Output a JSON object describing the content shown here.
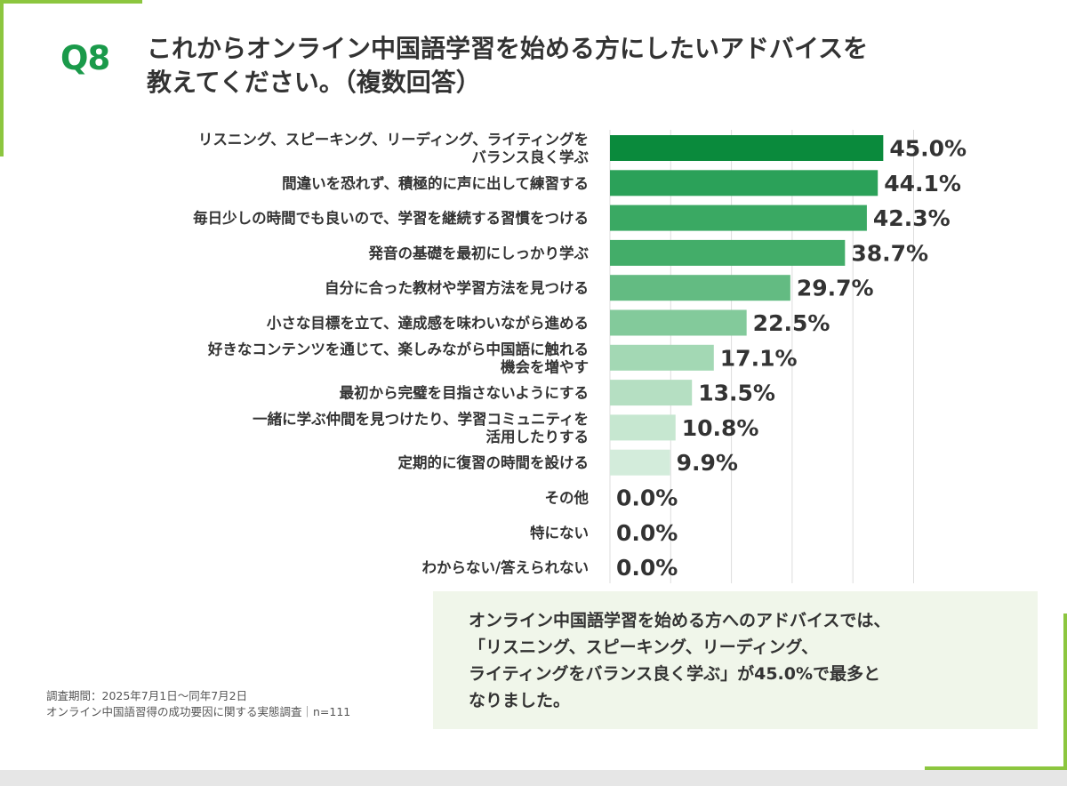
{
  "header": {
    "q_label": "Q8",
    "question_lines": [
      "これからオンライン中国語学習を始める方にしたいアドバイスを",
      "教えてください。（複数回答）"
    ]
  },
  "chart_data": {
    "type": "bar",
    "orientation": "horizontal",
    "categories": [
      [
        "リスニング、スピーキング、リーディング、ライティングを",
        "バランス良く学ぶ"
      ],
      [
        "間違いを恐れず、積極的に声に出して練習する"
      ],
      [
        "毎日少しの時間でも良いので、学習を継続する習慣をつける"
      ],
      [
        "発音の基礎を最初にしっかり学ぶ"
      ],
      [
        "自分に合った教材や学習方法を見つける"
      ],
      [
        "小さな目標を立て、達成感を味わいながら進める"
      ],
      [
        "好きなコンテンツを通じて、楽しみながら中国語に触れる",
        "機会を増やす"
      ],
      [
        "最初から完璧を目指さないようにする"
      ],
      [
        "一緒に学ぶ仲間を見つけたり、学習コミュニティを",
        "活用したりする"
      ],
      [
        "定期的に復習の時間を設ける"
      ],
      [
        "その他"
      ],
      [
        "特にない"
      ],
      [
        "わからない/答えられない"
      ]
    ],
    "values": [
      45.0,
      44.1,
      42.3,
      38.7,
      29.7,
      22.5,
      17.1,
      13.5,
      10.8,
      9.9,
      0.0,
      0.0,
      0.0
    ],
    "value_labels": [
      "45.0%",
      "44.1%",
      "42.3%",
      "38.7%",
      "29.7%",
      "22.5%",
      "17.1%",
      "13.5%",
      "10.8%",
      "9.9%",
      "0.0%",
      "0.0%",
      "0.0%"
    ],
    "bar_colors": [
      "#0a8a3c",
      "#2ba159",
      "#3aa963",
      "#43ad69",
      "#63bb82",
      "#83ca9b",
      "#a3d8b4",
      "#b5dfc2",
      "#c6e7d0",
      "#d3ecdb",
      "#e0f1e6",
      "#e0f1e6",
      "#e0f1e6"
    ],
    "xlim": [
      0,
      50
    ],
    "grid": "vertical",
    "axis_visible": false
  },
  "summary": {
    "lines": [
      "オンライン中国語学習を始める方へのアドバイスでは、",
      "「リスニング、スピーキング、リーディング、",
      "ライティングをバランス良く学ぶ」が45.0%で最多と",
      "なりました。"
    ]
  },
  "footnote": {
    "lines": [
      "調査期間：2025年7月1日〜同年7月2日",
      "オンライン中国語習得の成功要因に関する実態調査｜n=111"
    ]
  },
  "colors": {
    "accent_green": "#1a9a4a",
    "deco_lime": "#8cc63f",
    "grid": "#dddddd",
    "summary_bg": "#f0f6ea"
  }
}
